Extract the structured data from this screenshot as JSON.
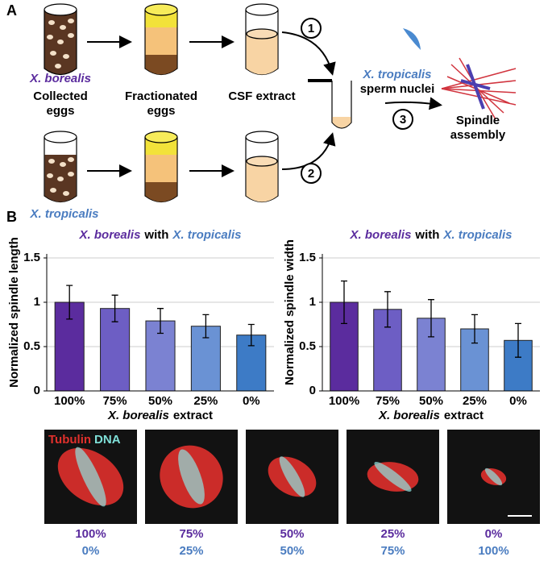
{
  "panel_a": {
    "label": "A",
    "borealis": "X. borealis",
    "collected": [
      "Collected",
      "eggs"
    ],
    "fractionated": [
      "Fractionated",
      "eggs"
    ],
    "csf": "CSF extract",
    "tropicalis": "X. tropicalis",
    "sperm": [
      "X. tropicalis",
      "sperm nuclei"
    ],
    "spindle": [
      "Spindle",
      "assembly"
    ],
    "steps": [
      "1",
      "2",
      "3"
    ]
  },
  "panel_b_label": "B",
  "chart_data": [
    {
      "type": "bar",
      "title": [
        "X. borealis",
        "with",
        "X. tropicalis"
      ],
      "ylabel": "Normalized spindle length",
      "xlabel": [
        "X. borealis",
        "extract"
      ],
      "categories": [
        "100%",
        "75%",
        "50%",
        "25%",
        "0%"
      ],
      "values": [
        1.0,
        0.93,
        0.79,
        0.73,
        0.63
      ],
      "errors": [
        0.19,
        0.15,
        0.14,
        0.13,
        0.12
      ],
      "colors": [
        "#5b2c9e",
        "#6d5ec4",
        "#7b82d2",
        "#6a92d4",
        "#3d7bc6"
      ],
      "ylim": [
        0,
        1.5
      ],
      "yticks": [
        0,
        0.5,
        1,
        1.5
      ],
      "grid": true
    },
    {
      "type": "bar",
      "title": [
        "X. borealis",
        "with",
        "X. tropicalis"
      ],
      "ylabel": "Normalized spindle width",
      "xlabel": [
        "X. borealis",
        "extract"
      ],
      "categories": [
        "100%",
        "75%",
        "50%",
        "25%",
        "0%"
      ],
      "values": [
        1.0,
        0.92,
        0.82,
        0.7,
        0.57
      ],
      "errors": [
        0.24,
        0.2,
        0.21,
        0.16,
        0.19
      ],
      "colors": [
        "#5b2c9e",
        "#6d5ec4",
        "#7b82d2",
        "#6a92d4",
        "#3d7bc6"
      ],
      "ylim": [
        0,
        1.5
      ],
      "yticks": [
        0,
        0.5,
        1,
        1.5
      ],
      "grid": true
    }
  ],
  "micrographs": {
    "channels": [
      "Tubulin",
      "DNA"
    ],
    "labels": [
      [
        "100%",
        "0%"
      ],
      [
        "75%",
        "25%"
      ],
      [
        "50%",
        "50%"
      ],
      [
        "25%",
        "75%"
      ],
      [
        "0%",
        "100%"
      ]
    ]
  }
}
